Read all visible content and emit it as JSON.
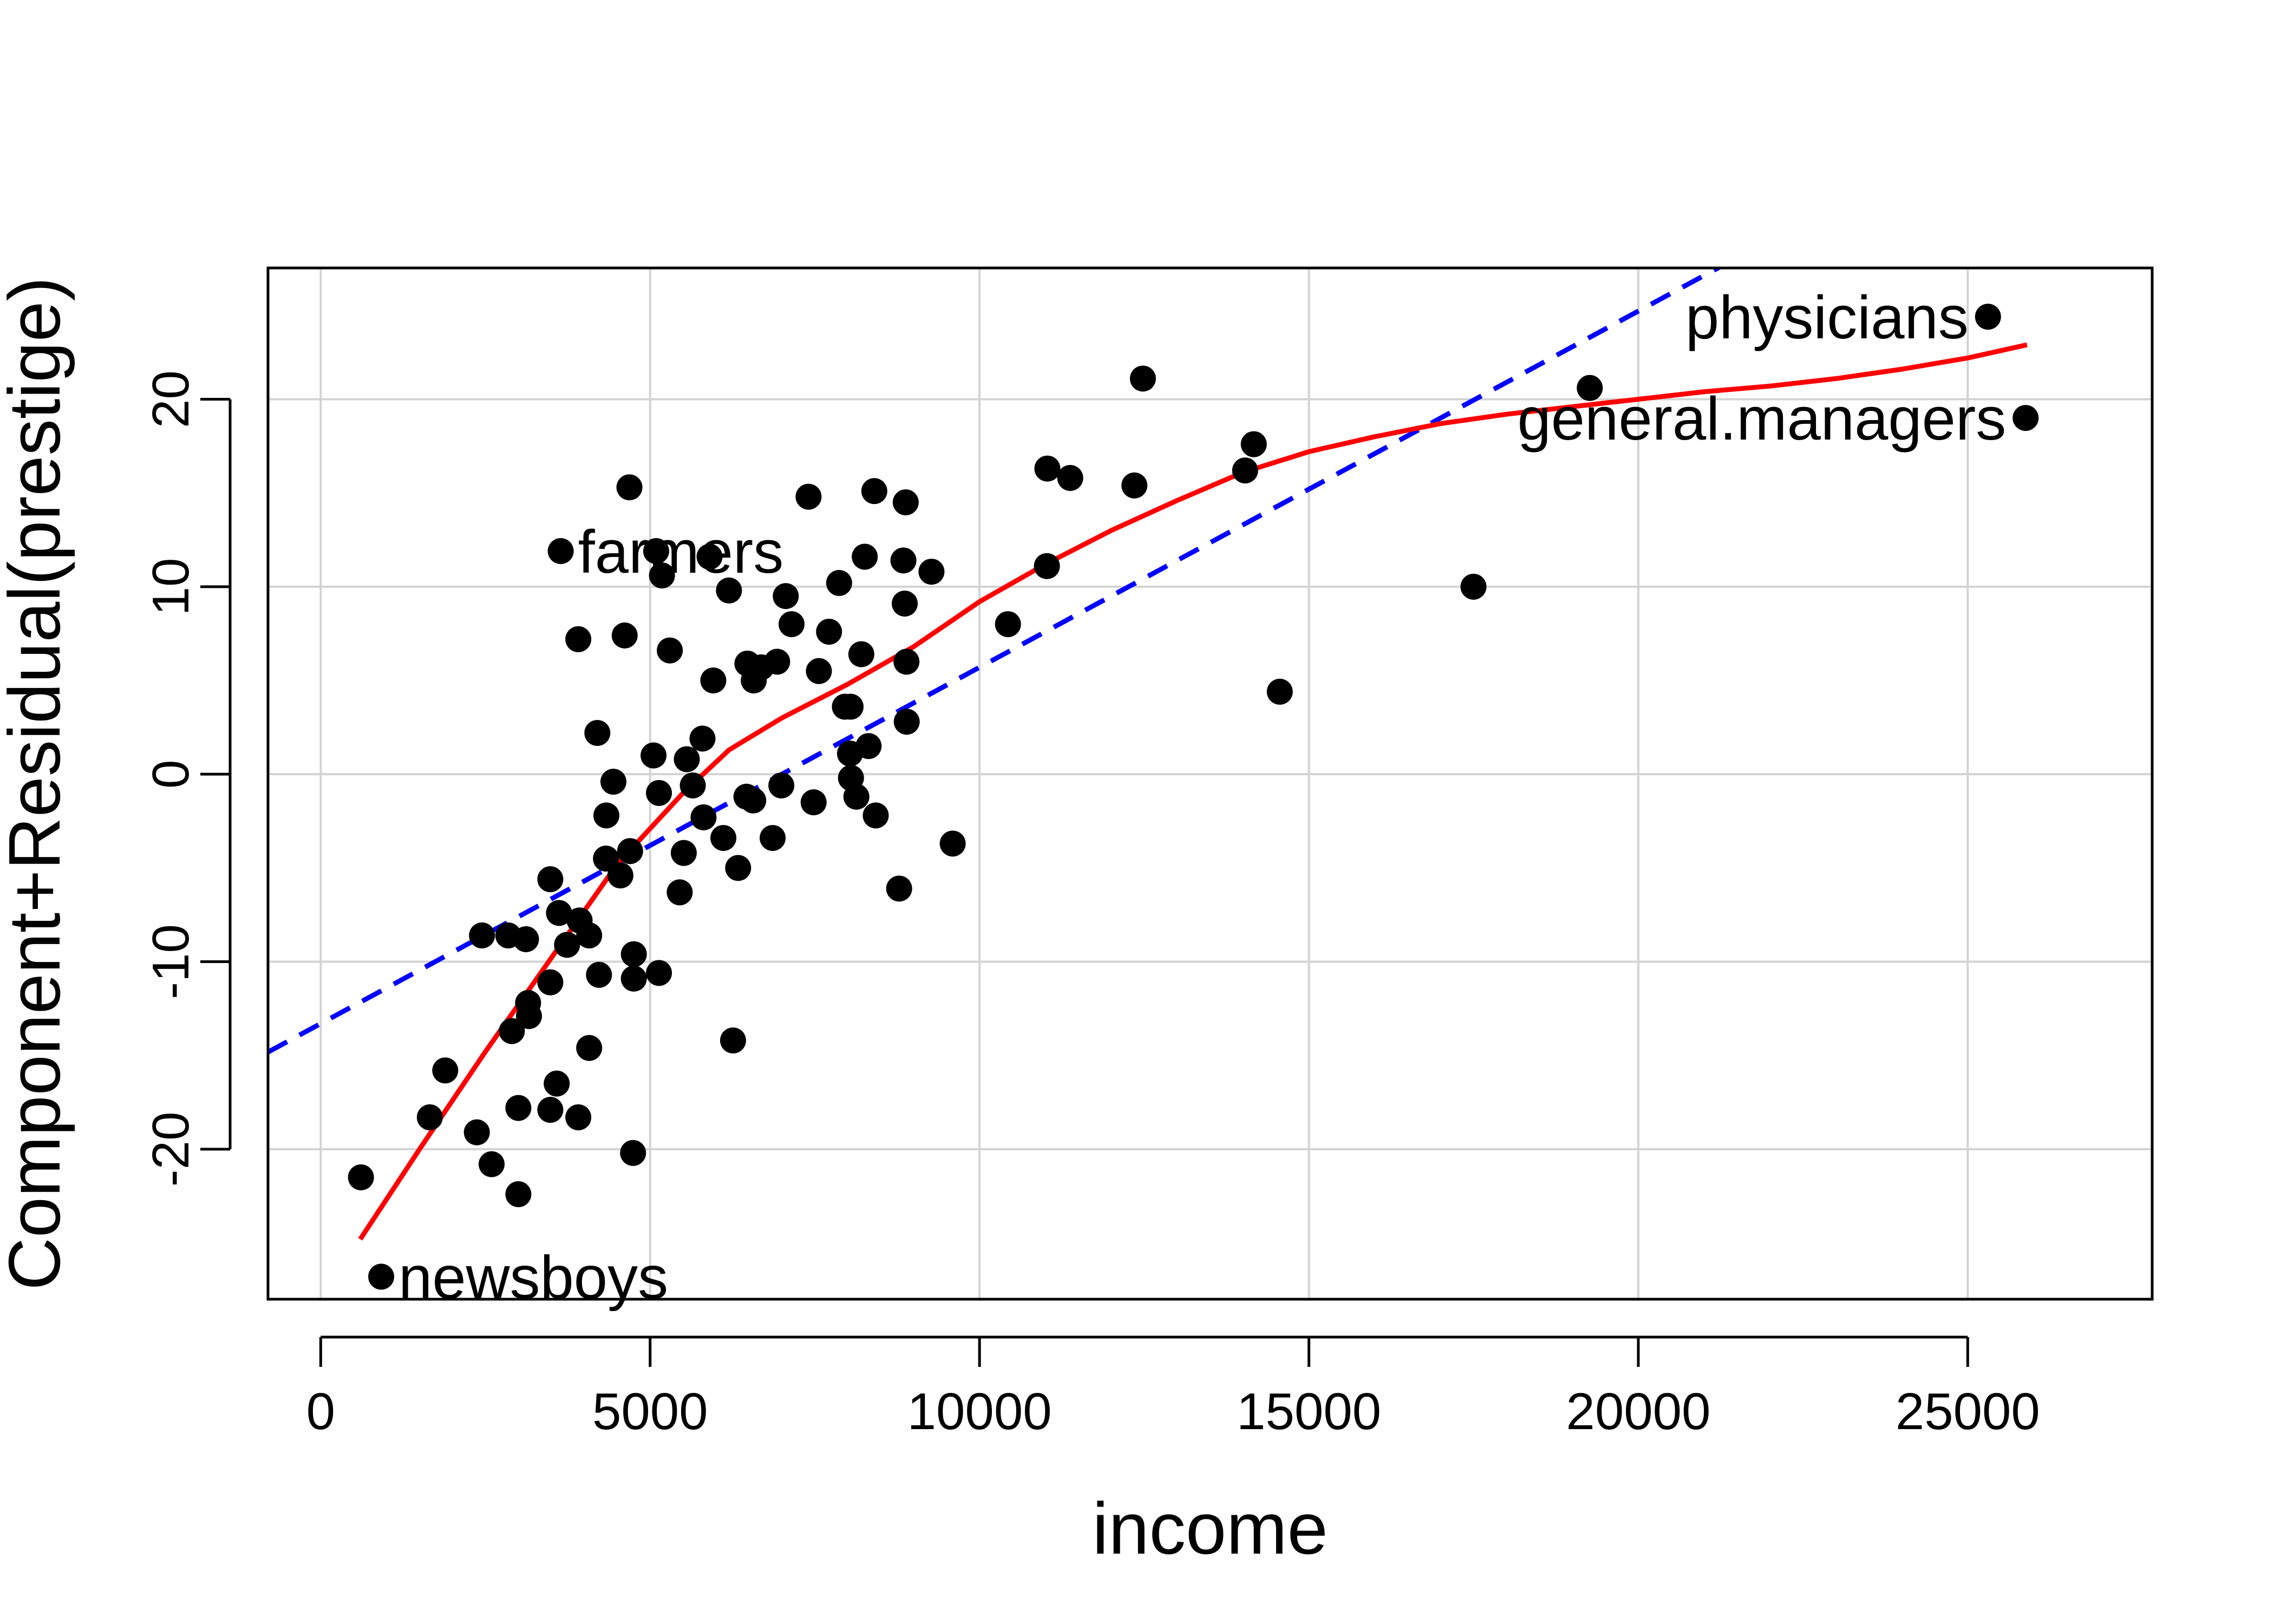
{
  "chart_data": {
    "type": "scatter",
    "xlabel": "income",
    "ylabel": "Component+Residual(prestige)",
    "xlim": [
      -800,
      27800
    ],
    "ylim": [
      -28,
      27
    ],
    "xticks": [
      0,
      5000,
      10000,
      15000,
      20000,
      25000
    ],
    "yticks": [
      -20,
      -10,
      0,
      10,
      20
    ],
    "grid": true,
    "colors": {
      "points": "#000000",
      "fit_line": "#0000ff",
      "smooth_line": "#ff0000",
      "grid": "#d3d3d3"
    },
    "points": [
      {
        "x": 611,
        "y": -21.5
      },
      {
        "x": 918,
        "y": -26.8
      },
      {
        "x": 1656,
        "y": -18.3
      },
      {
        "x": 1890,
        "y": -15.8
      },
      {
        "x": 2370,
        "y": -19.1
      },
      {
        "x": 2448,
        "y": -8.6
      },
      {
        "x": 2594,
        "y": -20.8
      },
      {
        "x": 2847,
        "y": -8.6
      },
      {
        "x": 2901,
        "y": -13.7
      },
      {
        "x": 3000,
        "y": -22.4
      },
      {
        "x": 3000,
        "y": -17.8
      },
      {
        "x": 3116,
        "y": -8.8
      },
      {
        "x": 3148,
        "y": -12.2
      },
      {
        "x": 3161,
        "y": -12.9
      },
      {
        "x": 3485,
        "y": -5.6
      },
      {
        "x": 3485,
        "y": -11.1
      },
      {
        "x": 3485,
        "y": -17.9
      },
      {
        "x": 3582,
        "y": -16.5
      },
      {
        "x": 3617,
        "y": -7.4
      },
      {
        "x": 3643,
        "y": 11.9
      },
      {
        "x": 3739,
        "y": -9.1
      },
      {
        "x": 3910,
        "y": 7.2
      },
      {
        "x": 3910,
        "y": -18.3
      },
      {
        "x": 3930,
        "y": -7.8
      },
      {
        "x": 4075,
        "y": -8.6
      },
      {
        "x": 4075,
        "y": -14.6
      },
      {
        "x": 4199,
        "y": 2.2
      },
      {
        "x": 4224,
        "y": -10.7
      },
      {
        "x": 4330,
        "y": -4.5
      },
      {
        "x": 4336,
        "y": -2.2
      },
      {
        "x": 4443,
        "y": -0.4
      },
      {
        "x": 4549,
        "y": -5.4
      },
      {
        "x": 4614,
        "y": 7.4
      },
      {
        "x": 4686,
        "y": 15.3
      },
      {
        "x": 4696,
        "y": -4.1
      },
      {
        "x": 4741,
        "y": -20.2
      },
      {
        "x": 4753,
        "y": -9.6
      },
      {
        "x": 4753,
        "y": -10.9
      },
      {
        "x": 5052,
        "y": 1.0
      },
      {
        "x": 5092,
        "y": 11.9
      },
      {
        "x": 5134,
        "y": -1.0
      },
      {
        "x": 5134,
        "y": -10.6
      },
      {
        "x": 5180,
        "y": 10.6
      },
      {
        "x": 5299,
        "y": 6.6
      },
      {
        "x": 5449,
        "y": -6.3
      },
      {
        "x": 5511,
        "y": -4.2
      },
      {
        "x": 5557,
        "y": 0.8
      },
      {
        "x": 5648,
        "y": -0.6
      },
      {
        "x": 5795,
        "y": 1.9
      },
      {
        "x": 5811,
        "y": -2.3
      },
      {
        "x": 5902,
        "y": 11.6
      },
      {
        "x": 5959,
        "y": 5.0
      },
      {
        "x": 6112,
        "y": -3.4
      },
      {
        "x": 6197,
        "y": 9.8
      },
      {
        "x": 6259,
        "y": -14.2
      },
      {
        "x": 6336,
        "y": -5.0
      },
      {
        "x": 6462,
        "y": -1.2
      },
      {
        "x": 6477,
        "y": 5.9
      },
      {
        "x": 6565,
        "y": -1.4
      },
      {
        "x": 6573,
        "y": 5.0
      },
      {
        "x": 6686,
        "y": 5.7
      },
      {
        "x": 6860,
        "y": -3.4
      },
      {
        "x": 6928,
        "y": 6.0
      },
      {
        "x": 6992,
        "y": -0.6
      },
      {
        "x": 7059,
        "y": 9.5
      },
      {
        "x": 7147,
        "y": 8.0
      },
      {
        "x": 7405,
        "y": 14.8
      },
      {
        "x": 7482,
        "y": -1.5
      },
      {
        "x": 7562,
        "y": 5.5
      },
      {
        "x": 7716,
        "y": 7.6
      },
      {
        "x": 7869,
        "y": 10.2
      },
      {
        "x": 7956,
        "y": 3.6
      },
      {
        "x": 8034,
        "y": 1.1
      },
      {
        "x": 8043,
        "y": 3.6
      },
      {
        "x": 8049,
        "y": -0.2
      },
      {
        "x": 8131,
        "y": -1.2
      },
      {
        "x": 8206,
        "y": 6.4
      },
      {
        "x": 8258,
        "y": 11.6
      },
      {
        "x": 8316,
        "y": 1.5
      },
      {
        "x": 8403,
        "y": 15.1
      },
      {
        "x": 8425,
        "y": -2.2
      },
      {
        "x": 8780,
        "y": -6.1
      },
      {
        "x": 8845,
        "y": 11.4
      },
      {
        "x": 8865,
        "y": 9.1
      },
      {
        "x": 8880,
        "y": 14.5
      },
      {
        "x": 8895,
        "y": 2.8
      },
      {
        "x": 8891,
        "y": 6.0
      },
      {
        "x": 9271,
        "y": 10.8
      },
      {
        "x": 9593,
        "y": -3.7
      },
      {
        "x": 10432,
        "y": 8.0
      },
      {
        "x": 11023,
        "y": 11.1
      },
      {
        "x": 11030,
        "y": 16.3
      },
      {
        "x": 11377,
        "y": 15.8
      },
      {
        "x": 12351,
        "y": 15.4
      },
      {
        "x": 12480,
        "y": 21.1
      },
      {
        "x": 14032,
        "y": 16.2
      },
      {
        "x": 14163,
        "y": 17.6
      },
      {
        "x": 14558,
        "y": 4.4
      },
      {
        "x": 17498,
        "y": 10.0
      },
      {
        "x": 19263,
        "y": 20.6
      },
      {
        "x": 25308,
        "y": 24.4
      },
      {
        "x": 25879,
        "y": 19.0
      }
    ],
    "labeled_points": [
      {
        "label": "newsboys",
        "x": 918,
        "y": -26.8,
        "anchor": "start"
      },
      {
        "label": "farmers",
        "x": 3643,
        "y": 11.9,
        "anchor": "start"
      },
      {
        "label": "physicians",
        "x": 25308,
        "y": 24.4,
        "anchor": "end"
      },
      {
        "label": "general.managers",
        "x": 25879,
        "y": 19.0,
        "anchor": "end"
      }
    ],
    "linear_fit": {
      "intercept": -13.3,
      "slope": 0.0019
    },
    "smooth_curve": [
      {
        "x": 600,
        "y": -24.8
      },
      {
        "x": 1500,
        "y": -20.0
      },
      {
        "x": 2500,
        "y": -14.8
      },
      {
        "x": 3500,
        "y": -9.8
      },
      {
        "x": 4500,
        "y": -4.8
      },
      {
        "x": 5500,
        "y": -1.0
      },
      {
        "x": 6200,
        "y": 1.3
      },
      {
        "x": 7000,
        "y": 3.0
      },
      {
        "x": 8000,
        "y": 4.8
      },
      {
        "x": 9000,
        "y": 6.8
      },
      {
        "x": 10000,
        "y": 9.2
      },
      {
        "x": 11000,
        "y": 11.2
      },
      {
        "x": 12000,
        "y": 13.0
      },
      {
        "x": 13000,
        "y": 14.6
      },
      {
        "x": 14000,
        "y": 16.1
      },
      {
        "x": 15000,
        "y": 17.2
      },
      {
        "x": 16000,
        "y": 18.0
      },
      {
        "x": 17000,
        "y": 18.7
      },
      {
        "x": 18000,
        "y": 19.2
      },
      {
        "x": 19000,
        "y": 19.6
      },
      {
        "x": 20000,
        "y": 20.0
      },
      {
        "x": 21000,
        "y": 20.4
      },
      {
        "x": 22000,
        "y": 20.7
      },
      {
        "x": 23000,
        "y": 21.1
      },
      {
        "x": 24000,
        "y": 21.6
      },
      {
        "x": 25000,
        "y": 22.2
      },
      {
        "x": 25900,
        "y": 22.9
      }
    ]
  }
}
